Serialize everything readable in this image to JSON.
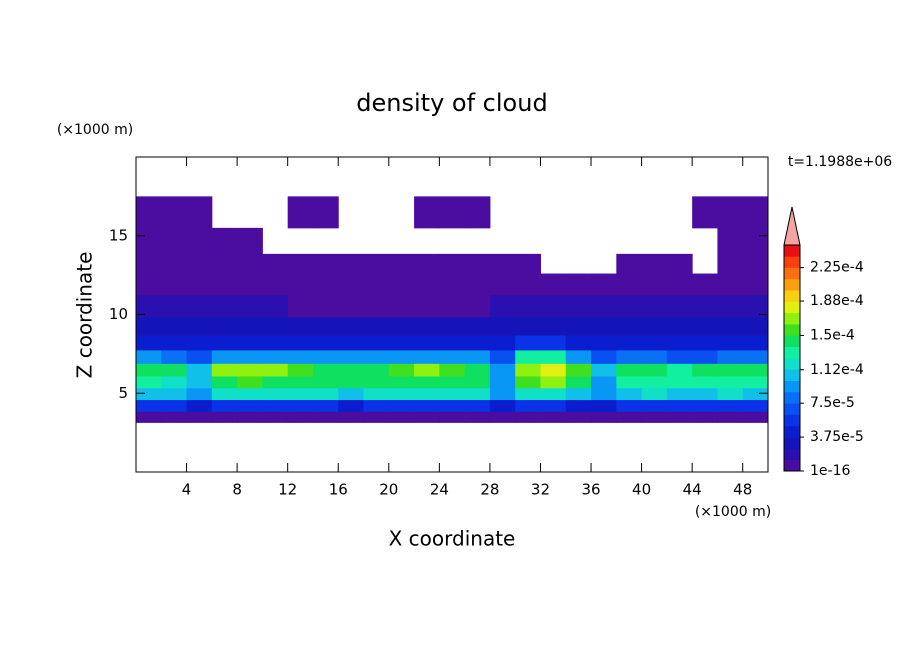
{
  "chart_data": {
    "type": "contour",
    "title": "density of cloud",
    "xlabel": "X coordinate",
    "ylabel": "Z coordinate",
    "x_unit_label": "(×1000 m)",
    "y_unit_label": "(×1000 m)",
    "annotation": "t=1.1988e+06",
    "xlim": [
      0,
      50
    ],
    "ylim": [
      0,
      20
    ],
    "xticks": [
      4,
      8,
      12,
      16,
      20,
      24,
      28,
      32,
      36,
      40,
      44,
      48
    ],
    "yticks": [
      5,
      10,
      15
    ],
    "x": [
      1,
      3,
      5,
      7,
      9,
      11,
      13,
      15,
      17,
      19,
      21,
      23,
      25,
      27,
      29,
      31,
      33,
      35,
      37,
      39,
      41,
      43,
      45,
      47,
      49
    ],
    "y": [
      3.5,
      4.2,
      5.0,
      5.7,
      6.5,
      7.3,
      8.2,
      9.2,
      10.5,
      12.0,
      13.2,
      14.5,
      16.5
    ],
    "values": [
      [
        1e-06,
        1e-06,
        1e-06,
        1e-06,
        1e-06,
        1e-06,
        1e-06,
        1e-06,
        1e-06,
        1e-06,
        1e-06,
        1e-06,
        1e-06,
        1e-06,
        1e-06,
        1e-06,
        1e-06,
        1e-06,
        1e-06,
        1e-06,
        1e-06,
        1e-06,
        1e-06,
        1e-06,
        1e-06
      ],
      [
        6e-05,
        6e-05,
        5e-05,
        6e-05,
        6e-05,
        6e-05,
        6e-05,
        6e-05,
        5e-05,
        6e-05,
        6e-05,
        6e-05,
        6e-05,
        6e-05,
        5e-05,
        6e-05,
        6e-05,
        5e-05,
        5e-05,
        6e-05,
        6e-05,
        6e-05,
        6e-05,
        6e-05,
        6e-05
      ],
      [
        0.00011,
        0.00011,
        9e-05,
        0.000115,
        0.00012,
        0.00012,
        0.000115,
        0.000115,
        0.00011,
        0.000115,
        0.00012,
        0.00012,
        0.00012,
        0.000115,
        9e-05,
        0.00012,
        0.000125,
        0.00011,
        9e-05,
        0.00011,
        0.000115,
        0.00011,
        0.00011,
        0.000115,
        0.00011
      ],
      [
        0.00013,
        0.00012,
        0.00011,
        0.00014,
        0.000155,
        0.00015,
        0.00015,
        0.00015,
        0.00015,
        0.00015,
        0.00015,
        0.00015,
        0.00015,
        0.00015,
        0.0001,
        0.00016,
        0.000165,
        0.00014,
        0.0001,
        0.00013,
        0.00013,
        0.00013,
        0.00013,
        0.00013,
        0.00013
      ],
      [
        0.00015,
        0.00014,
        0.00011,
        0.000165,
        0.000175,
        0.00017,
        0.00016,
        0.00015,
        0.000145,
        0.00015,
        0.000155,
        0.000165,
        0.00016,
        0.00014,
        9e-05,
        0.000175,
        0.00018,
        0.00016,
        0.00011,
        0.000145,
        0.00015,
        0.000135,
        0.00014,
        0.00015,
        0.00014
      ],
      [
        9e-05,
        8e-05,
        7e-05,
        0.0001,
        0.0001,
        0.0001,
        0.0001,
        0.0001,
        9e-05,
        0.0001,
        0.0001,
        0.0001,
        0.0001,
        9e-05,
        7e-05,
        0.00013,
        0.00013,
        0.0001,
        7e-05,
        8e-05,
        8e-05,
        7e-05,
        7e-05,
        8e-05,
        8e-05
      ],
      [
        5e-05,
        5e-05,
        5e-05,
        5e-05,
        5e-05,
        5e-05,
        5e-05,
        5e-05,
        5e-05,
        5e-05,
        5e-05,
        5e-05,
        5e-05,
        5e-05,
        5e-05,
        6e-05,
        6e-05,
        5e-05,
        5e-05,
        5e-05,
        5e-05,
        5e-05,
        5e-05,
        5e-05,
        5e-05
      ],
      [
        3e-05,
        3e-05,
        3e-05,
        3e-05,
        3e-05,
        3e-05,
        3e-05,
        3e-05,
        3e-05,
        3e-05,
        3e-05,
        3e-05,
        3e-05,
        3e-05,
        3e-05,
        3e-05,
        3e-05,
        3e-05,
        3e-05,
        3e-05,
        3e-05,
        3e-05,
        3e-05,
        3e-05,
        3e-05
      ],
      [
        1.5e-05,
        1.5e-05,
        1.5e-05,
        1.5e-05,
        1.5e-05,
        1.5e-05,
        1e-05,
        1e-05,
        1e-05,
        1e-05,
        1e-05,
        1e-05,
        1e-05,
        1e-05,
        1.5e-05,
        1.5e-05,
        1.5e-05,
        1.5e-05,
        1.5e-05,
        1.5e-05,
        1.5e-05,
        1.5e-05,
        1.5e-05,
        1.5e-05,
        1.5e-05
      ],
      [
        5e-06,
        5e-06,
        5e-06,
        5e-06,
        5e-06,
        5e-06,
        5e-06,
        5e-06,
        5e-06,
        5e-06,
        5e-06,
        5e-06,
        5e-06,
        5e-06,
        5e-06,
        5e-06,
        5e-06,
        5e-06,
        5e-06,
        5e-06,
        5e-06,
        5e-06,
        5e-06,
        5e-06,
        5e-06
      ],
      [
        1e-06,
        1e-06,
        1e-06,
        1e-06,
        1e-06,
        1e-06,
        1e-06,
        1e-06,
        1e-06,
        1e-06,
        1e-06,
        1e-06,
        1e-06,
        1e-06,
        1e-06,
        1e-06,
        null,
        null,
        null,
        1e-06,
        1e-06,
        1e-06,
        null,
        1e-06,
        1e-06
      ],
      [
        1e-06,
        1e-06,
        1e-06,
        1e-06,
        1e-06,
        null,
        null,
        null,
        null,
        null,
        null,
        null,
        null,
        null,
        null,
        null,
        null,
        null,
        null,
        null,
        null,
        null,
        null,
        1e-06,
        1e-06
      ],
      [
        1e-06,
        1e-06,
        1e-06,
        null,
        null,
        null,
        1e-06,
        1e-06,
        null,
        null,
        null,
        1e-06,
        1e-06,
        1e-06,
        null,
        null,
        null,
        null,
        null,
        null,
        null,
        null,
        1e-06,
        1e-06,
        1e-06
      ]
    ],
    "colorbar": {
      "clim": [
        1e-16,
        0.00025
      ],
      "ticks": [
        1e-16,
        {
          "value": 3.75e-05,
          "label": "3.75e-5"
        },
        {
          "value": 7.5e-05,
          "label": "7.5e-5"
        },
        {
          "value": 0.000112,
          "label": "1.12e-4"
        },
        {
          "value": 0.00015,
          "label": "1.5e-4"
        },
        {
          "value": 0.000188,
          "label": "1.88e-4"
        },
        {
          "value": 0.000225,
          "label": "2.25e-4"
        }
      ],
      "colors": [
        "#4b0ca0",
        "#2a10b0",
        "#1414b8",
        "#0a1ed0",
        "#0a32e6",
        "#0a50f0",
        "#0a70f5",
        "#0a96f5",
        "#10c0e8",
        "#10e0c8",
        "#10f0a0",
        "#10e060",
        "#40e020",
        "#90f010",
        "#e0f010",
        "#f8d010",
        "#f8a010",
        "#f87010",
        "#f84010",
        "#e81010"
      ],
      "extend_color": "#f4a4a4"
    }
  }
}
